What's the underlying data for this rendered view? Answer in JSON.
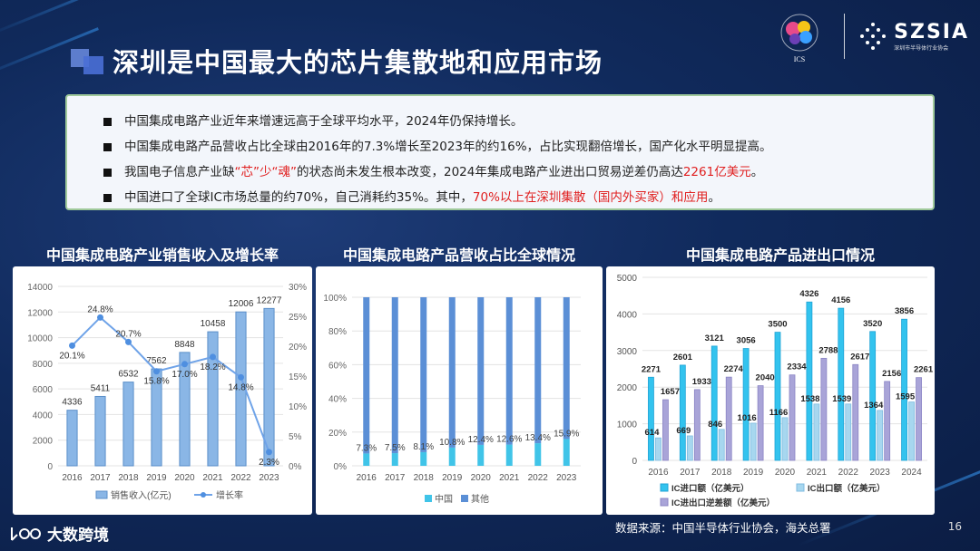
{
  "title": "深圳是中国最大的芯片集散地和应用市场",
  "logos": {
    "ics_text": "ICS",
    "szsia_text": "SZSIA",
    "szsia_sub": "深圳市半导体行业协会"
  },
  "bullets": [
    {
      "parts": [
        {
          "text": "中国集成电路产业近年来增速远高于全球平均水平，2024年仍保持增长。",
          "red": false
        }
      ]
    },
    {
      "parts": [
        {
          "text": "中国集成电路产品营收占比全球由2016年的7.3%增长至2023年的约16%，占比实现翻倍增长，国产化水平明显提高。",
          "red": false
        }
      ]
    },
    {
      "parts": [
        {
          "text": "我国电子信息产业缺",
          "red": false
        },
        {
          "text": "“芯”少“魂”",
          "red": true
        },
        {
          "text": "的状态尚未发生根本改变，2024年集成电路产业进出口贸易逆差仍高达",
          "red": false
        },
        {
          "text": "2261亿美元",
          "red": true
        },
        {
          "text": "。",
          "red": false
        }
      ]
    },
    {
      "parts": [
        {
          "text": "中国进口了全球IC市场总量的约70%，自己消耗约35%。其中，",
          "red": false
        },
        {
          "text": "70%以上在深圳集散（国内外买家）和应用",
          "red": true
        },
        {
          "text": "。",
          "red": false
        }
      ]
    }
  ],
  "source": "数据来源：中国半导体行业协会，海关总署",
  "page_number": "16",
  "brand": "大数跨境",
  "colors": {
    "bar_blue": "#5b9bd5",
    "bar_light": "#9dc3e6",
    "line_blue": "#4f8fe0",
    "purple": "#a8a3d6",
    "cyan": "#4cc9f0",
    "accent_red": "#e02020"
  },
  "chart_data": [
    {
      "type": "bar+line",
      "title": "中国集成电路产业销售收入及增长率",
      "categories": [
        "2016",
        "2017",
        "2018",
        "2019",
        "2020",
        "2021",
        "2022",
        "2023"
      ],
      "series": [
        {
          "name": "销售收入(亿元)",
          "values": [
            4336,
            5411,
            6532,
            7562,
            8848,
            10458,
            12006,
            12277
          ],
          "labels": [
            "4336",
            "5411",
            "6532",
            "7562",
            "8848",
            "10458",
            "12006",
            "12277"
          ]
        },
        {
          "name": "增长率",
          "values": [
            20.1,
            24.8,
            20.7,
            15.8,
            17.0,
            18.2,
            14.8,
            2.3
          ],
          "labels": [
            "20.1%",
            "24.8%",
            "20.7%",
            "15.8%",
            "17.0%",
            "18.2%",
            "14.8%",
            "2.3%"
          ]
        }
      ],
      "ylim": [
        0,
        14000
      ],
      "y_ticks": [
        "0",
        "2000",
        "4000",
        "6000",
        "8000",
        "10000",
        "12000",
        "14000"
      ],
      "y2lim": [
        0,
        30
      ],
      "y2_ticks": [
        "0%",
        "5%",
        "10%",
        "15%",
        "20%",
        "25%",
        "30%"
      ],
      "legend": [
        "销售收入(亿元)",
        "增长率"
      ]
    },
    {
      "type": "stacked-bar-100",
      "title": "中国集成电路产品营收占比全球情况",
      "categories": [
        "2016",
        "2017",
        "2018",
        "2019",
        "2020",
        "2021",
        "2022",
        "2023"
      ],
      "series": [
        {
          "name": "中国",
          "values": [
            7.3,
            7.5,
            8.1,
            10.8,
            12.4,
            12.6,
            13.4,
            15.9
          ],
          "labels": [
            "7.3%",
            "7.5%",
            "8.1%",
            "10.8%",
            "12.4%",
            "12.6%",
            "13.4%",
            "15.9%"
          ]
        },
        {
          "name": "其他",
          "values": [
            92.7,
            92.5,
            91.9,
            89.2,
            87.6,
            87.4,
            86.6,
            84.1
          ]
        }
      ],
      "ylim": [
        0,
        100
      ],
      "y_ticks": [
        "0%",
        "20%",
        "40%",
        "60%",
        "80%",
        "100%"
      ],
      "legend": [
        "中国",
        "其他"
      ]
    },
    {
      "type": "grouped-bar",
      "title": "中国集成电路产品进出口情况",
      "categories": [
        "2016",
        "2017",
        "2018",
        "2019",
        "2020",
        "2021",
        "2022",
        "2023",
        "2024"
      ],
      "series": [
        {
          "name": "IC进口额（亿美元）",
          "values": [
            2271,
            2601,
            3121,
            3056,
            3500,
            4326,
            4156,
            3520,
            3856
          ],
          "labels": [
            "2271",
            "2601",
            "3121",
            "3056",
            "3500",
            "4326",
            "4156",
            "3520",
            "3856"
          ]
        },
        {
          "name": "IC出口额（亿美元）",
          "values": [
            614,
            669,
            846,
            1016,
            1166,
            1538,
            1539,
            1364,
            1595
          ],
          "labels": [
            "614",
            "669",
            "846",
            "1016",
            "1166",
            "1538",
            "1539",
            "1364",
            "1595"
          ]
        },
        {
          "name": "IC进出口逆差额（亿美元）",
          "values": [
            1657,
            1933,
            2274,
            2040,
            2334,
            2788,
            2617,
            2156,
            2261
          ],
          "labels": [
            "1657",
            "1933",
            "2274",
            "2040",
            "2334",
            "2788",
            "2617",
            "2156",
            "2261"
          ]
        }
      ],
      "ylim": [
        0,
        5000
      ],
      "y_ticks": [
        "0",
        "1000",
        "2000",
        "3000",
        "4000",
        "5000"
      ],
      "legend": [
        "IC进口额（亿美元）",
        "IC出口额（亿美元）",
        "IC进出口逆差额（亿美元）"
      ]
    }
  ]
}
